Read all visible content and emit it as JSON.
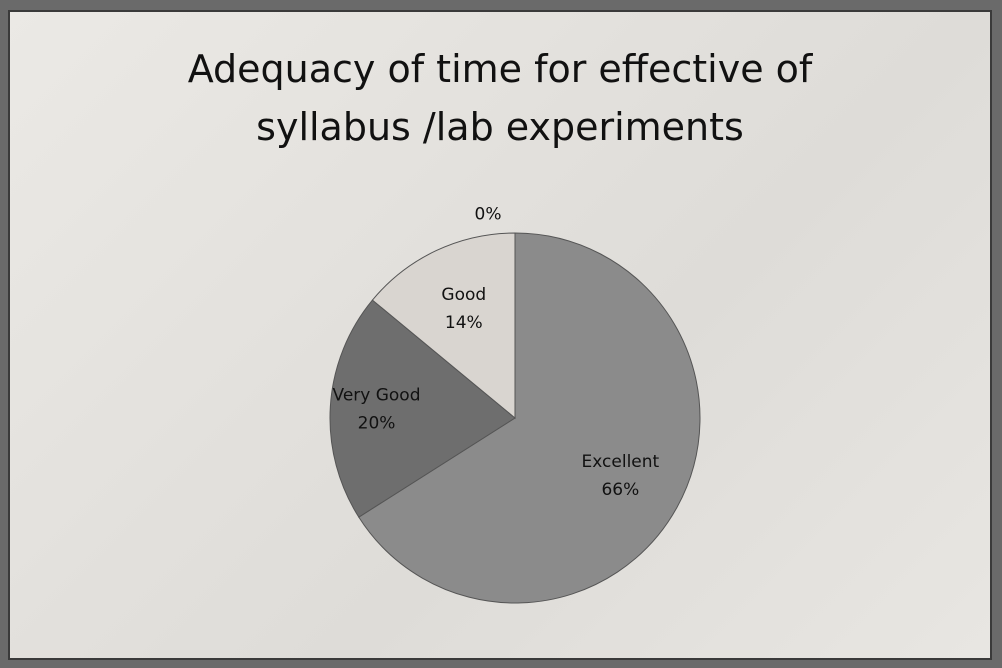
{
  "chart_data": {
    "type": "pie",
    "title": "Adequacy of time for effective of syllabus /lab experiments",
    "categories": [
      "Excellent",
      "Very Good",
      "Good",
      null
    ],
    "values": [
      66,
      20,
      14,
      0
    ],
    "value_labels": [
      "66%",
      "20%",
      "14%",
      "0%"
    ],
    "colors": [
      "#8b8b8b",
      "#6e6e6e",
      "#d9d5d0",
      "#bdbdbd"
    ]
  }
}
